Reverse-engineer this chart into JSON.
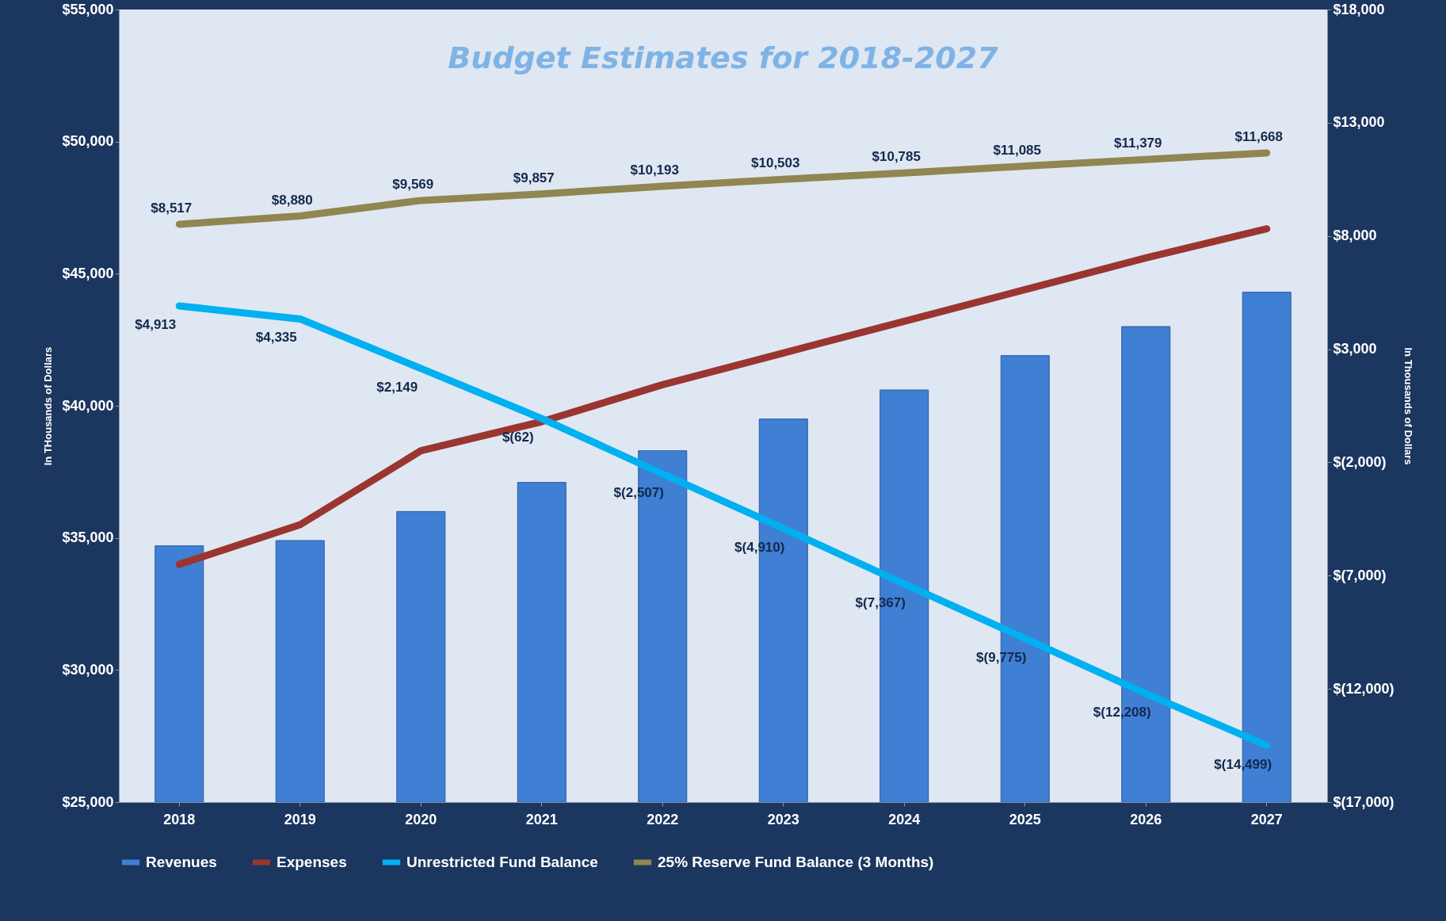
{
  "chart_data": {
    "type": "bar",
    "title": "Budget Estimates for 2018-2027",
    "ylabel": "In THousands of Dollars",
    "y2label": "In Thousands of Dollars",
    "categories": [
      "2018",
      "2019",
      "2020",
      "2021",
      "2022",
      "2023",
      "2024",
      "2025",
      "2026",
      "2027"
    ],
    "series": [
      {
        "name": "Revenues",
        "color": "#3f7fd4",
        "values": [
          34700,
          34900,
          36000,
          37100,
          38300,
          39500,
          40600,
          41900,
          43000,
          44300
        ]
      },
      {
        "name": "Expenses",
        "type": "line",
        "color": "#9b3530",
        "values": [
          34000,
          35500,
          38300,
          39400,
          40800,
          42000,
          43200,
          44400,
          45600,
          46700
        ]
      },
      {
        "name": "Unrestricted Fund Balance",
        "type": "line",
        "axis": "y2",
        "color": "#00b0f0",
        "values": [
          4913,
          4335,
          2149,
          -62,
          -2507,
          -4910,
          -7367,
          -9775,
          -12208,
          -14499
        ],
        "value_labels": [
          "$4,913",
          "$4,335",
          "$2,149",
          "$(62)",
          "$(2,507)",
          "$(4,910)",
          "$(7,367)",
          "$(9,775)",
          "$(12,208)",
          "$(14,499)"
        ]
      },
      {
        "name": "25%  Reserve Fund Balance (3 Months)",
        "type": "line",
        "axis": "y2",
        "color": "#8f8651",
        "values": [
          8517,
          8880,
          9569,
          9857,
          10193,
          10503,
          10785,
          11085,
          11379,
          11668
        ],
        "value_labels": [
          "$8,517",
          "$8,880",
          "$9,569",
          "$9,857",
          "$10,193",
          "$10,503",
          "$10,785",
          "$11,085",
          "$11,379",
          "$11,668"
        ]
      }
    ],
    "ylim": [
      25000,
      55000
    ],
    "yticks": [
      {
        "value": 25000,
        "label": "$25,000"
      },
      {
        "value": 30000,
        "label": "$30,000"
      },
      {
        "value": 35000,
        "label": "$35,000"
      },
      {
        "value": 40000,
        "label": "$40,000"
      },
      {
        "value": 45000,
        "label": "$45,000"
      },
      {
        "value": 50000,
        "label": "$50,000"
      },
      {
        "value": 55000,
        "label": "$55,000"
      }
    ],
    "y2lim": [
      -17000,
      18000
    ],
    "y2ticks": [
      {
        "value": -17000,
        "label": "$(17,000)"
      },
      {
        "value": -12000,
        "label": "$(12,000)"
      },
      {
        "value": -7000,
        "label": "$(7,000)"
      },
      {
        "value": -2000,
        "label": "$(2,000)"
      },
      {
        "value": 3000,
        "label": "$3,000"
      },
      {
        "value": 8000,
        "label": "$8,000"
      },
      {
        "value": 13000,
        "label": "$13,000"
      },
      {
        "value": 18000,
        "label": "$18,000"
      }
    ],
    "grid": false,
    "legend": "bottom",
    "line_style": "solid"
  }
}
